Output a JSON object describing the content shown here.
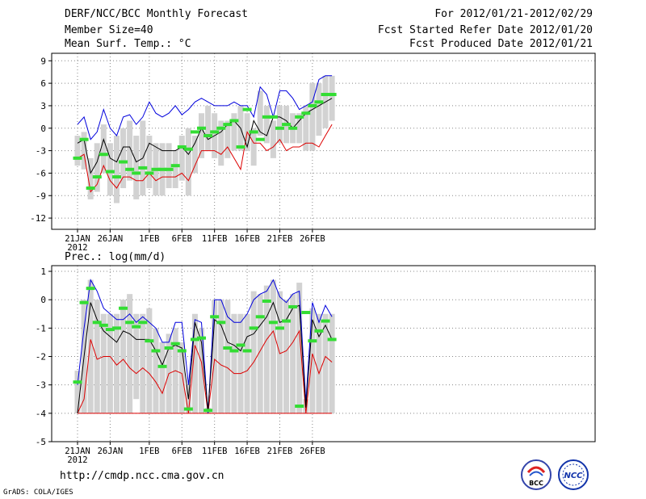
{
  "header": {
    "title": "DERF/NCC/BCC Monthly Forecast",
    "member_size": "Member Size=40",
    "variable1": "Mean Surf. Temp.: °C",
    "period": "For 2012/01/21-2012/02/29",
    "fcst_started": "Fcst Started Refer Date 2012/01/20",
    "fcst_produced": "Fcst Produced Date 2012/01/21",
    "variable2": "Prec.: log(mm/d)"
  },
  "footer": {
    "url": "http://cmdp.ncc.cma.gov.cn",
    "grads_label": "GrADS: COLA/IGES",
    "logo_bcc": "BCC",
    "logo_ncc": "NCC"
  },
  "colors": {
    "max_line": "#0000dd",
    "min_line": "#dd0000",
    "mean_line": "#000000",
    "ensemble_box": "#d2d2d2",
    "marker": "#33dd33"
  },
  "chart_data": [
    {
      "type": "box-line",
      "title": "Mean Surf. Temp.: °C",
      "x_tick_labels": [
        "21JAN",
        "26JAN",
        "1FEB",
        "6FEB",
        "11FEB",
        "16FEB",
        "21FEB",
        "26FEB"
      ],
      "x_tick_days": [
        1,
        6,
        12,
        17,
        22,
        27,
        32,
        37
      ],
      "x_year_label": "2012",
      "ylim": [
        -13.5,
        10
      ],
      "y_ticks": [
        -12,
        -9,
        -6,
        -3,
        0,
        3,
        6,
        9
      ],
      "days": 40,
      "box_low": [
        -5,
        -5.5,
        -9.5,
        -8.5,
        -6,
        -9,
        -10,
        -8,
        -7,
        -9.5,
        -9,
        -8,
        -9,
        -9,
        -8,
        -8,
        -7,
        -9,
        -6,
        -4,
        -3,
        -4,
        -5,
        -4,
        -3,
        -3,
        -3,
        -5,
        -1,
        -2,
        -4,
        -2,
        -2,
        -2,
        -2,
        -3,
        -3,
        -1,
        0,
        1
      ],
      "box_high": [
        -1,
        -0.5,
        -4,
        -2,
        0.5,
        -2,
        -1,
        0,
        1,
        -1,
        1,
        -1,
        -2,
        -2,
        -2,
        -3,
        -1,
        0,
        -1,
        2,
        3,
        2,
        1,
        1,
        2,
        3,
        2,
        0,
        5,
        3,
        1,
        3,
        3,
        2,
        2,
        3,
        6,
        6,
        7,
        7
      ],
      "max": [
        0.5,
        1.5,
        -1.5,
        -0.5,
        2.5,
        0,
        -1,
        1.5,
        1.8,
        0.5,
        1.5,
        3.5,
        2,
        1.5,
        2,
        3,
        1.8,
        2.5,
        3.5,
        4,
        3.5,
        3,
        3,
        3,
        3.5,
        3,
        3,
        1.5,
        5.5,
        4.5,
        1.5,
        5,
        5,
        4,
        2.5,
        3,
        3.5,
        6.5,
        7,
        7
      ],
      "mean": [
        -2,
        -1.5,
        -6,
        -4.5,
        -1.5,
        -4,
        -4.5,
        -2.5,
        -2.5,
        -4.5,
        -4,
        -2,
        -2.5,
        -3,
        -3,
        -3,
        -2.5,
        -3.5,
        -2,
        0,
        -1.5,
        -1,
        -0.5,
        0.5,
        1,
        0,
        -2.5,
        1,
        -0.5,
        -1,
        1.5,
        1.5,
        1,
        0,
        1,
        2,
        2.5,
        3,
        3.5,
        4
      ],
      "min": [
        -4,
        -3.5,
        -8.5,
        -7.5,
        -5,
        -7,
        -8,
        -6.5,
        -6.5,
        -7,
        -7,
        -6,
        -7,
        -6.5,
        -6.5,
        -6.5,
        -6,
        -7,
        -5,
        -3,
        -3,
        -3,
        -3.5,
        -2.5,
        -4,
        -5.5,
        -0.5,
        -2,
        -2,
        -3,
        -2.5,
        -1.5,
        -3,
        -2.5,
        -2.5,
        -2,
        -2,
        -2.5,
        -1,
        0.5
      ],
      "markers": [
        -4,
        -1.5,
        -8,
        -6.5,
        -3.5,
        -5.8,
        -6.5,
        -4.5,
        -5.5,
        -6,
        -5.3,
        -6,
        -5.5,
        -5.5,
        -5.5,
        -5,
        -2.5,
        -2.8,
        -0.5,
        0,
        -1,
        -0.5,
        0,
        0.5,
        1,
        -2.5,
        2.5,
        -0.5,
        -1.5,
        1.5,
        1.5,
        0,
        0.5,
        0,
        1.5,
        2,
        3,
        3.5,
        4.5,
        4.5
      ]
    },
    {
      "type": "box-line",
      "title": "Prec.: log(mm/d)",
      "x_tick_labels": [
        "21JAN",
        "26JAN",
        "1FEB",
        "6FEB",
        "11FEB",
        "16FEB",
        "21FEB",
        "26FEB"
      ],
      "x_tick_days": [
        1,
        6,
        12,
        17,
        22,
        27,
        32,
        37
      ],
      "x_year_label": "2012",
      "ylim": [
        -5,
        1.2
      ],
      "y_ticks": [
        -5,
        -4,
        -3,
        -2,
        -1,
        0,
        1
      ],
      "days": 40,
      "box_low": [
        -4,
        -4,
        -4,
        -4,
        -4,
        -4,
        -4,
        -4,
        -4,
        -3.5,
        -4,
        -4,
        -4,
        -4,
        -4,
        -4,
        -4,
        -4,
        -4,
        -4,
        -4,
        -4,
        -4,
        -4,
        -4,
        -4,
        -4,
        -4,
        -4,
        -4,
        -4,
        -4,
        -4,
        -4,
        -4,
        -4,
        -4,
        -4,
        -4,
        -4
      ],
      "box_high": [
        -2.5,
        0,
        0.7,
        0,
        -0.5,
        -0.5,
        -0.5,
        0,
        0.2,
        -0.5,
        -0.5,
        -0.3,
        -1,
        -1.5,
        -1.2,
        -1,
        -1.5,
        -3,
        -0.5,
        -1,
        -3.8,
        0,
        0,
        0,
        -0.5,
        -0.5,
        -0.5,
        0.3,
        0.2,
        0.5,
        0.7,
        0.3,
        0,
        0.2,
        0.6,
        -3.5,
        -0.3,
        -0.5,
        -0.5,
        -0.5
      ],
      "max": [
        -3,
        -1,
        0.7,
        0.3,
        -0.3,
        -0.5,
        -0.7,
        -0.7,
        -0.5,
        -0.8,
        -0.6,
        -0.8,
        -1,
        -1.5,
        -1.5,
        -0.8,
        -0.8,
        -3,
        -0.7,
        -0.8,
        -4,
        0,
        0,
        -0.6,
        -0.8,
        -0.8,
        -0.5,
        0,
        0.2,
        0.3,
        0.7,
        0.1,
        -0.1,
        0.2,
        0.3,
        -3.6,
        -0.1,
        -0.8,
        -0.2,
        -0.6
      ],
      "mean": [
        -4,
        -2,
        -0.1,
        -0.7,
        -1.1,
        -1.3,
        -1.5,
        -1.1,
        -1.2,
        -1.4,
        -1.4,
        -1.4,
        -1.8,
        -2.3,
        -1.7,
        -1.6,
        -1.7,
        -3.5,
        -0.8,
        -1.5,
        -3.9,
        -0.7,
        -0.9,
        -1.5,
        -1.6,
        -1.8,
        -1.3,
        -1.2,
        -0.9,
        -0.6,
        -0.1,
        -0.8,
        -0.7,
        -0.3,
        -0.2,
        -3.8,
        -0.7,
        -1.3,
        -0.9,
        -1.4
      ],
      "min": [
        -4,
        -3.5,
        -1.4,
        -2.1,
        -2,
        -2,
        -2.3,
        -2.1,
        -2.4,
        -2.6,
        -2.4,
        -2.6,
        -2.9,
        -3.3,
        -2.6,
        -2.5,
        -2.6,
        -4,
        -1.6,
        -2.2,
        -4,
        -2.1,
        -2.3,
        -2.4,
        -2.6,
        -2.6,
        -2.5,
        -2.2,
        -1.8,
        -1.4,
        -1.1,
        -1.9,
        -1.8,
        -1.5,
        -1.1,
        -4,
        -1.9,
        -2.6,
        -2,
        -2.2
      ],
      "floor": -4,
      "markers": [
        -2.9,
        -0.1,
        0.4,
        -0.8,
        -0.9,
        -1.05,
        -1,
        -0.3,
        -0.8,
        -0.95,
        -0.8,
        -1.45,
        -1.8,
        -2.35,
        -1.7,
        -1.55,
        -1.8,
        -3.85,
        -1.4,
        -1.35,
        -3.9,
        -0.6,
        -0.8,
        -1.7,
        -1.8,
        -1.6,
        -1.8,
        -1,
        -0.6,
        -0.05,
        -0.8,
        -1,
        -0.75,
        -0.25,
        -3.75,
        -0.45,
        -1.45,
        -1.1,
        -0.75,
        -1.4
      ]
    }
  ]
}
